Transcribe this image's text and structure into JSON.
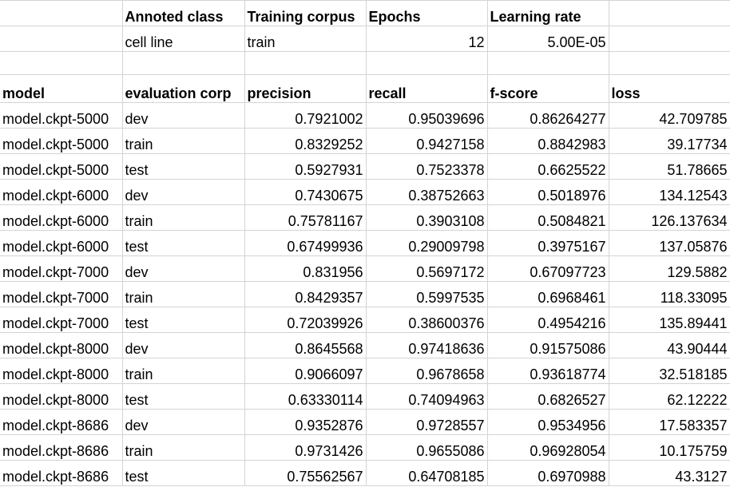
{
  "meta_header": {
    "labels": [
      "Annoted class",
      "Training corpus",
      "Epochs",
      "Learning rate"
    ],
    "values": {
      "annotated_class": "cell line",
      "training_corpus": "train",
      "epochs": "12",
      "learning_rate": "5.00E-05"
    }
  },
  "table": {
    "columns": [
      "model",
      "evaluation corp",
      "precision",
      "recall",
      "f-score",
      "loss"
    ],
    "rows": [
      [
        "model.ckpt-5000",
        "dev",
        "0.7921002",
        "0.95039696",
        "0.86264277",
        "42.709785"
      ],
      [
        "model.ckpt-5000",
        "train",
        "0.8329252",
        "0.9427158",
        "0.8842983",
        "39.17734"
      ],
      [
        "model.ckpt-5000",
        "test",
        "0.5927931",
        "0.7523378",
        "0.6625522",
        "51.78665"
      ],
      [
        "model.ckpt-6000",
        "dev",
        "0.7430675",
        "0.38752663",
        "0.5018976",
        "134.12543"
      ],
      [
        "model.ckpt-6000",
        "train",
        "0.75781167",
        "0.3903108",
        "0.5084821",
        "126.137634"
      ],
      [
        "model.ckpt-6000",
        "test",
        "0.67499936",
        "0.29009798",
        "0.3975167",
        "137.05876"
      ],
      [
        "model.ckpt-7000",
        "dev",
        "0.831956",
        "0.5697172",
        "0.67097723",
        "129.5882"
      ],
      [
        "model.ckpt-7000",
        "train",
        "0.8429357",
        "0.5997535",
        "0.6968461",
        "118.33095"
      ],
      [
        "model.ckpt-7000",
        "test",
        "0.72039926",
        "0.38600376",
        "0.4954216",
        "135.89441"
      ],
      [
        "model.ckpt-8000",
        "dev",
        "0.8645568",
        "0.97418636",
        "0.91575086",
        "43.90444"
      ],
      [
        "model.ckpt-8000",
        "train",
        "0.9066097",
        "0.9678658",
        "0.93618774",
        "32.518185"
      ],
      [
        "model.ckpt-8000",
        "test",
        "0.63330114",
        "0.74094963",
        "0.6826527",
        "62.12222"
      ],
      [
        "model.ckpt-8686",
        "dev",
        "0.9352876",
        "0.9728557",
        "0.9534956",
        "17.583357"
      ],
      [
        "model.ckpt-8686",
        "train",
        "0.9731426",
        "0.9655086",
        "0.96928054",
        "10.175759"
      ],
      [
        "model.ckpt-8686",
        "test",
        "0.75562567",
        "0.64708185",
        "0.6970988",
        "43.3127"
      ]
    ]
  }
}
